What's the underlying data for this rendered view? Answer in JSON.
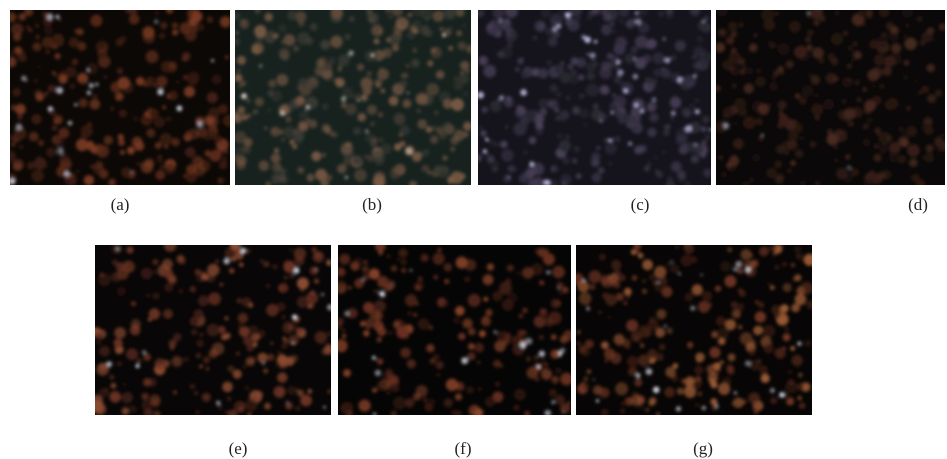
{
  "panels": [
    {
      "label": "(a)"
    },
    {
      "label": "(b)"
    },
    {
      "label": "(c)"
    },
    {
      "label": "(d)"
    },
    {
      "label": "(e)"
    },
    {
      "label": "(f)"
    },
    {
      "label": "(g)"
    }
  ]
}
